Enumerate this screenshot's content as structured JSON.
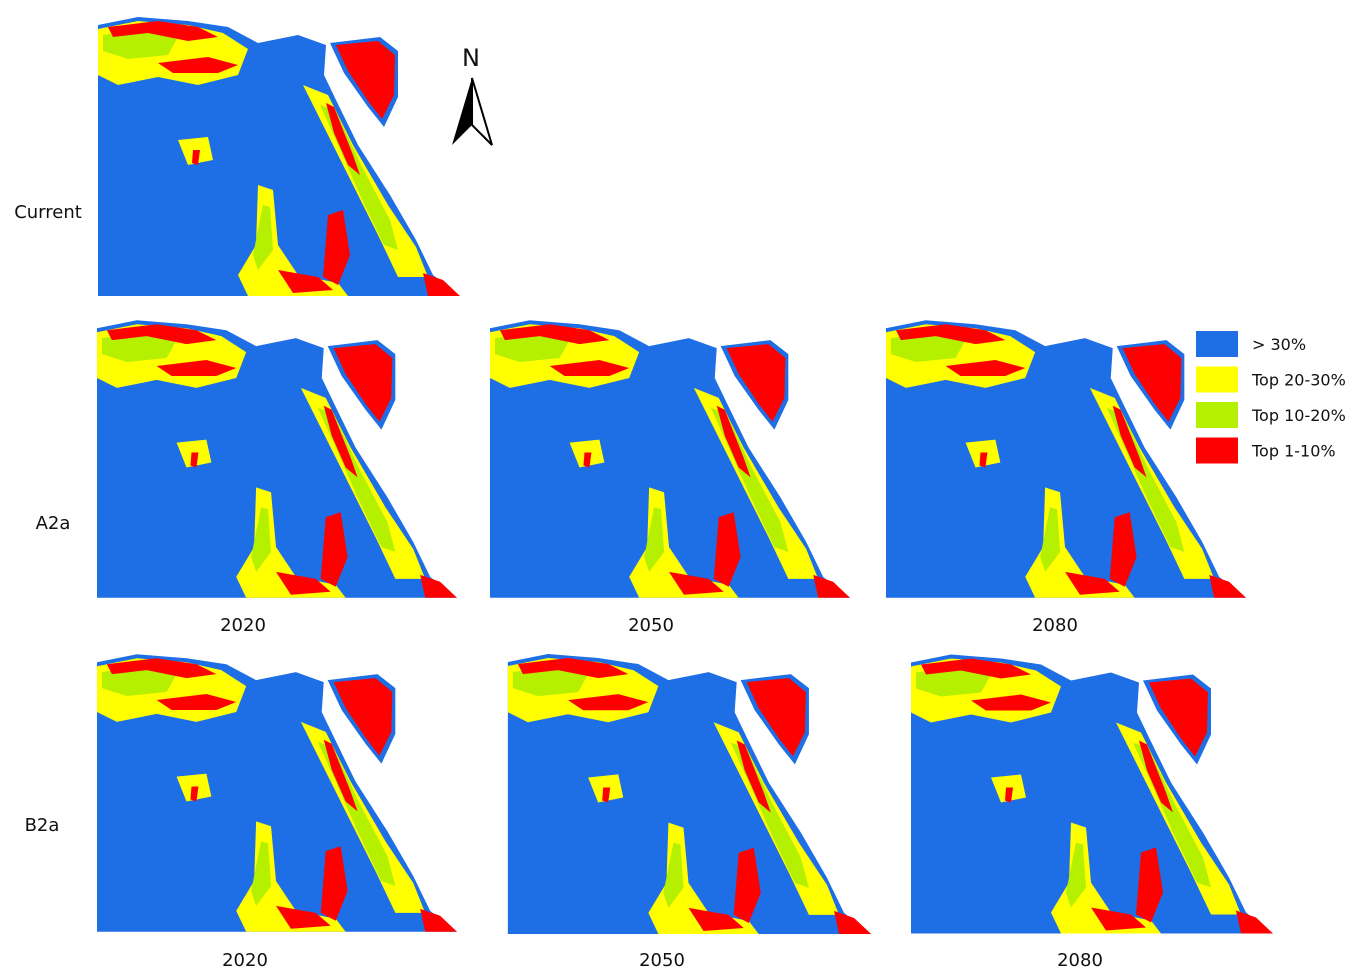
{
  "north_label": "N",
  "rows": [
    {
      "label": "Current"
    },
    {
      "label": "A2a",
      "columns": [
        "2020",
        "2050",
        "2080"
      ]
    },
    {
      "label": "B2a",
      "columns": [
        "2020",
        "2050",
        "2080"
      ]
    }
  ],
  "legend": [
    {
      "label": "> 30%",
      "color": "#1E6FE6"
    },
    {
      "label": "Top 20-30%",
      "color": "#FFFF00"
    },
    {
      "label": "Top 10-20%",
      "color": "#B4F000"
    },
    {
      "label": "Top 1-10%",
      "color": "#FF0000"
    }
  ]
}
